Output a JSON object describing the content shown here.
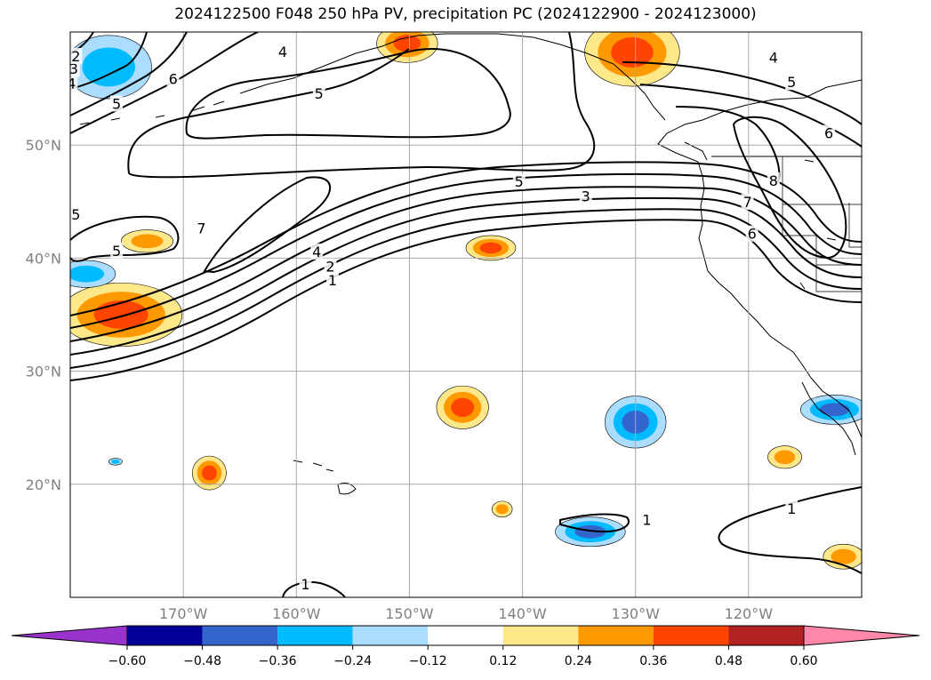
{
  "title": "2024122500 F048 250 hPa PV, precipitation PC (2024122900 - 2024123000)",
  "map": {
    "lon_range": [
      -180,
      -110
    ],
    "lat_range": [
      10,
      60
    ],
    "lat_ticks": [
      {
        "value": 50,
        "label": "50°N"
      },
      {
        "value": 40,
        "label": "40°N"
      },
      {
        "value": 30,
        "label": "30°N"
      },
      {
        "value": 20,
        "label": "20°N"
      }
    ],
    "lon_ticks": [
      {
        "value": -170,
        "label": "170°W"
      },
      {
        "value": -160,
        "label": "160°W"
      },
      {
        "value": -150,
        "label": "150°W"
      },
      {
        "value": -140,
        "label": "140°W"
      },
      {
        "value": -130,
        "label": "130°W"
      },
      {
        "value": -120,
        "label": "120°W"
      }
    ],
    "grid": true
  },
  "colorbar": {
    "colors": [
      "#9933cc",
      "#000099",
      "#3366cc",
      "#00bbff",
      "#aaddff",
      "#ffffff",
      "#ffe88a",
      "#ff9900",
      "#ff4400",
      "#b22222",
      "#ff88aa"
    ],
    "tick_labels": [
      "−0.60",
      "−0.48",
      "−0.36",
      "−0.24",
      "−0.12",
      "0.12",
      "0.24",
      "0.36",
      "0.48",
      "0.60"
    ],
    "extend": "both"
  },
  "pv_contour_labels": [
    {
      "text": "1",
      "lon": -159.2,
      "lat": 11.1
    },
    {
      "text": "1",
      "lon": -116.2,
      "lat": 17.8
    },
    {
      "text": "1",
      "lon": -129.0,
      "lat": 16.8
    },
    {
      "text": "1",
      "lon": -156.8,
      "lat": 38.0
    },
    {
      "text": "2",
      "lon": -157.0,
      "lat": 39.2
    },
    {
      "text": "3",
      "lon": -134.4,
      "lat": 45.4
    },
    {
      "text": "4",
      "lon": -158.2,
      "lat": 40.5
    },
    {
      "text": "5",
      "lon": -140.3,
      "lat": 46.7
    },
    {
      "text": "5",
      "lon": -175.9,
      "lat": 40.6
    },
    {
      "text": "5",
      "lon": -175.9,
      "lat": 53.6
    },
    {
      "text": "5",
      "lon": -158.0,
      "lat": 54.5
    },
    {
      "text": "5",
      "lon": -116.2,
      "lat": 55.5
    },
    {
      "text": "6",
      "lon": -170.9,
      "lat": 55.8
    },
    {
      "text": "6",
      "lon": -119.7,
      "lat": 42.1
    },
    {
      "text": "6",
      "lon": -112.9,
      "lat": 51.0
    },
    {
      "text": "7",
      "lon": -168.4,
      "lat": 42.6
    },
    {
      "text": "7",
      "lon": -120.1,
      "lat": 44.9
    },
    {
      "text": "8",
      "lon": -117.8,
      "lat": 46.8
    },
    {
      "text": "3",
      "lon": -179.7,
      "lat": 56.7
    },
    {
      "text": "4",
      "lon": -179.9,
      "lat": 55.4
    },
    {
      "text": "4",
      "lon": -161.2,
      "lat": 58.2
    },
    {
      "text": "4",
      "lon": -117.8,
      "lat": 57.7
    },
    {
      "text": "2",
      "lon": -179.5,
      "lat": 57.8
    },
    {
      "text": "5",
      "lon": -179.5,
      "lat": 43.8
    }
  ],
  "precip_blobs": [
    {
      "lon": -175.5,
      "lat": 35.0,
      "rx": 5.4,
      "ry": 2.8,
      "levels": [
        0.12,
        0.24,
        0.36
      ]
    },
    {
      "lon": -173.2,
      "lat": 41.5,
      "rx": 2.3,
      "ry": 1.0,
      "levels": [
        0.12,
        0.24
      ]
    },
    {
      "lon": -142.8,
      "lat": 40.9,
      "rx": 2.2,
      "ry": 1.1,
      "levels": [
        0.12,
        0.24,
        0.36
      ]
    },
    {
      "lon": -145.3,
      "lat": 26.8,
      "rx": 2.3,
      "ry": 1.9,
      "levels": [
        0.12,
        0.24,
        0.36
      ]
    },
    {
      "lon": -167.7,
      "lat": 21.0,
      "rx": 1.5,
      "ry": 1.5,
      "levels": [
        0.12,
        0.24,
        0.36
      ]
    },
    {
      "lon": -141.8,
      "lat": 17.8,
      "rx": 0.9,
      "ry": 0.7,
      "levels": [
        0.12,
        0.24
      ]
    },
    {
      "lon": -116.8,
      "lat": 22.4,
      "rx": 1.5,
      "ry": 1.0,
      "levels": [
        0.12,
        0.24
      ]
    },
    {
      "lon": -111.6,
      "lat": 13.6,
      "rx": 1.8,
      "ry": 1.1,
      "levels": [
        0.12,
        0.24
      ]
    },
    {
      "lon": -150.2,
      "lat": 59.0,
      "rx": 2.7,
      "ry": 1.7,
      "levels": [
        0.12,
        0.24,
        0.36
      ]
    },
    {
      "lon": -130.3,
      "lat": 58.2,
      "rx": 4.2,
      "ry": 3.0,
      "levels": [
        0.12,
        0.24,
        0.36
      ]
    },
    {
      "lon": -130.0,
      "lat": 25.5,
      "rx": 2.7,
      "ry": 2.3,
      "levels": [
        -0.12,
        -0.24,
        -0.36
      ]
    },
    {
      "lon": -134.0,
      "lat": 15.8,
      "rx": 3.1,
      "ry": 1.3,
      "levels": [
        -0.12,
        -0.24,
        -0.36
      ]
    },
    {
      "lon": -112.4,
      "lat": 26.6,
      "rx": 3.0,
      "ry": 1.3,
      "levels": [
        -0.12,
        -0.24,
        -0.36
      ]
    },
    {
      "lon": -176.6,
      "lat": 56.9,
      "rx": 3.8,
      "ry": 2.8,
      "levels": [
        -0.12,
        -0.24
      ]
    },
    {
      "lon": -178.6,
      "lat": 38.6,
      "rx": 2.6,
      "ry": 1.2,
      "levels": [
        -0.12,
        -0.24
      ]
    },
    {
      "lon": -176.0,
      "lat": 22.0,
      "rx": 0.6,
      "ry": 0.3,
      "levels": [
        -0.12,
        -0.24
      ]
    }
  ]
}
